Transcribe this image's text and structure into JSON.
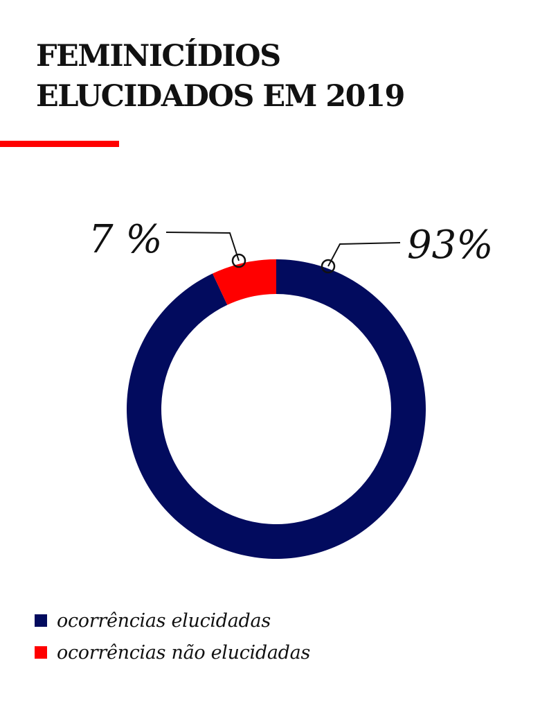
{
  "title": {
    "line1": "FEMINICÍDIOS",
    "line2": "ELUCIDADOS EM 2019"
  },
  "colors": {
    "accent": "#ff0000",
    "elucidadas": "#020b5e",
    "nao_elucidadas": "#ff0000",
    "text": "#111111"
  },
  "chart_data": {
    "type": "pie",
    "variant": "donut",
    "title": "FEMINICÍDIOS ELUCIDADOS EM 2019",
    "slices": [
      {
        "label": "ocorrências elucidadas",
        "value": 93,
        "value_label": "93%",
        "color": "#020b5e"
      },
      {
        "label": "ocorrências não elucidadas",
        "value": 7,
        "value_label": "7 %",
        "color": "#ff0000"
      }
    ],
    "legend_position": "bottom-left"
  },
  "legend": [
    {
      "label": "ocorrências elucidadas",
      "color": "#020b5e"
    },
    {
      "label": "ocorrências não elucidadas",
      "color": "#ff0000"
    }
  ]
}
